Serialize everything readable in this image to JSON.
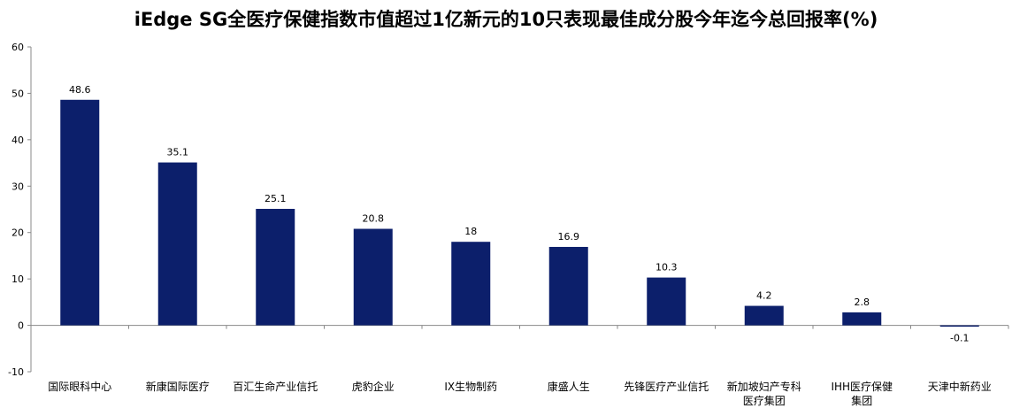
{
  "chart_data": {
    "type": "bar",
    "title": "iEdge SG全医疗保健指数市值超过1亿新元的10只表现最佳成分股今年迄今总回报率(%)",
    "categories": [
      "国际眼科中心",
      "新康国际医疗",
      "百汇生命产业信托",
      "虎豹企业",
      "IX生物制药",
      "康盛人生",
      "先锋医疗产业信托",
      "新加坡妇产专科医疗集团",
      "IHH医疗保健集团",
      "天津中新药业"
    ],
    "values": [
      48.6,
      35.1,
      25.1,
      20.8,
      18,
      16.9,
      10.3,
      4.2,
      2.8,
      -0.1
    ],
    "value_labels": [
      "48.6",
      "35.1",
      "25.1",
      "20.8",
      "18",
      "16.9",
      "10.3",
      "4.2",
      "2.8",
      "-0.1"
    ],
    "ylim": [
      -10,
      60
    ],
    "yticks": [
      -10,
      0,
      10,
      20,
      30,
      40,
      50,
      60
    ],
    "xlabel": "",
    "ylabel": "",
    "bar_color": "#0c1f6b",
    "grid": false,
    "legend": "none"
  }
}
